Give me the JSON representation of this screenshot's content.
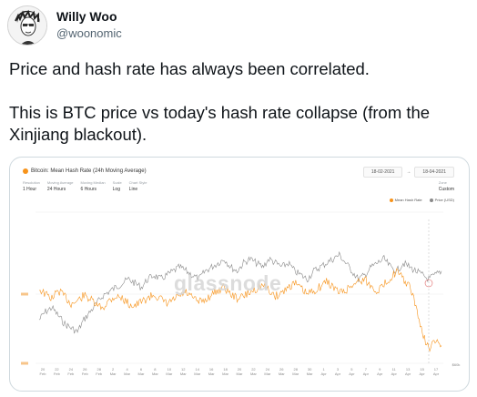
{
  "author": {
    "name": "Willy Woo",
    "handle": "@woonomic"
  },
  "tweet": {
    "lines": [
      "Price and hash rate has always been correlated.",
      "This is BTC price vs today's hash rate collapse (from the Xinjiang blackout)."
    ]
  },
  "card": {
    "title": "Bitcoin: Mean Hash Rate (24h Moving Average)",
    "date_from": "18-02-2021",
    "date_to": "18-04-2021",
    "controls": [
      {
        "label": "Resolution",
        "value": "1 Hour"
      },
      {
        "label": "Moving Average",
        "value": "24 Hours"
      },
      {
        "label": "Moving Median",
        "value": "6 Hours"
      },
      {
        "label": "Scale",
        "value": "Log"
      },
      {
        "label": "Chart Style",
        "value": "Line"
      }
    ],
    "zone": {
      "label": "Zone",
      "value": "Custom"
    },
    "watermark": "glassnode"
  },
  "chart_data": {
    "type": "line",
    "title": "Bitcoin: Mean Hash Rate (24h Moving Average)",
    "series": [
      {
        "name": "Mean Hash Rate",
        "color": "#f7931a"
      },
      {
        "name": "Price (USD)",
        "color": "#8a8a8a"
      }
    ],
    "y_tick_labels": [
      "",
      "",
      ""
    ],
    "right_axis_label": "$60k",
    "x_tick_labels": [
      "20 Feb",
      "22 Feb",
      "24 Feb",
      "26 Feb",
      "28 Feb",
      "2 Mar",
      "4 Mar",
      "6 Mar",
      "8 Mar",
      "10 Mar",
      "12 Mar",
      "14 Mar",
      "16 Mar",
      "18 Mar",
      "20 Mar",
      "22 Mar",
      "24 Mar",
      "26 Mar",
      "28 Mar",
      "30 Mar",
      "1 Apr",
      "3 Apr",
      "5 Apr",
      "7 Apr",
      "9 Apr",
      "11 Apr",
      "13 Apr",
      "15 Apr",
      "17 Apr"
    ],
    "price_series": [
      48,
      50,
      51,
      49,
      47,
      46,
      45,
      48,
      50,
      52,
      54,
      55,
      56,
      57,
      58,
      57,
      56,
      58,
      59,
      58,
      59,
      60,
      61,
      60,
      59,
      58,
      60,
      61,
      62,
      63,
      61,
      60,
      62,
      63,
      62,
      61,
      63,
      62,
      61,
      62,
      60,
      59,
      58,
      60,
      61,
      62,
      63,
      64,
      62,
      60,
      58,
      59,
      61,
      62,
      63,
      61,
      60,
      62,
      61,
      60,
      59,
      58,
      59,
      60
    ],
    "hashrate_series": [
      168,
      162,
      158,
      166,
      160,
      152,
      155,
      161,
      157,
      150,
      148,
      156,
      160,
      158,
      152,
      150,
      154,
      158,
      162,
      157,
      152,
      156,
      160,
      164,
      158,
      154,
      156,
      162,
      166,
      170,
      162,
      158,
      160,
      164,
      168,
      172,
      166,
      160,
      164,
      170,
      174,
      168,
      162,
      166,
      170,
      176,
      170,
      164,
      166,
      172,
      176,
      178,
      170,
      166,
      172,
      180,
      186,
      178,
      170,
      150,
      120,
      105,
      112,
      108
    ]
  }
}
